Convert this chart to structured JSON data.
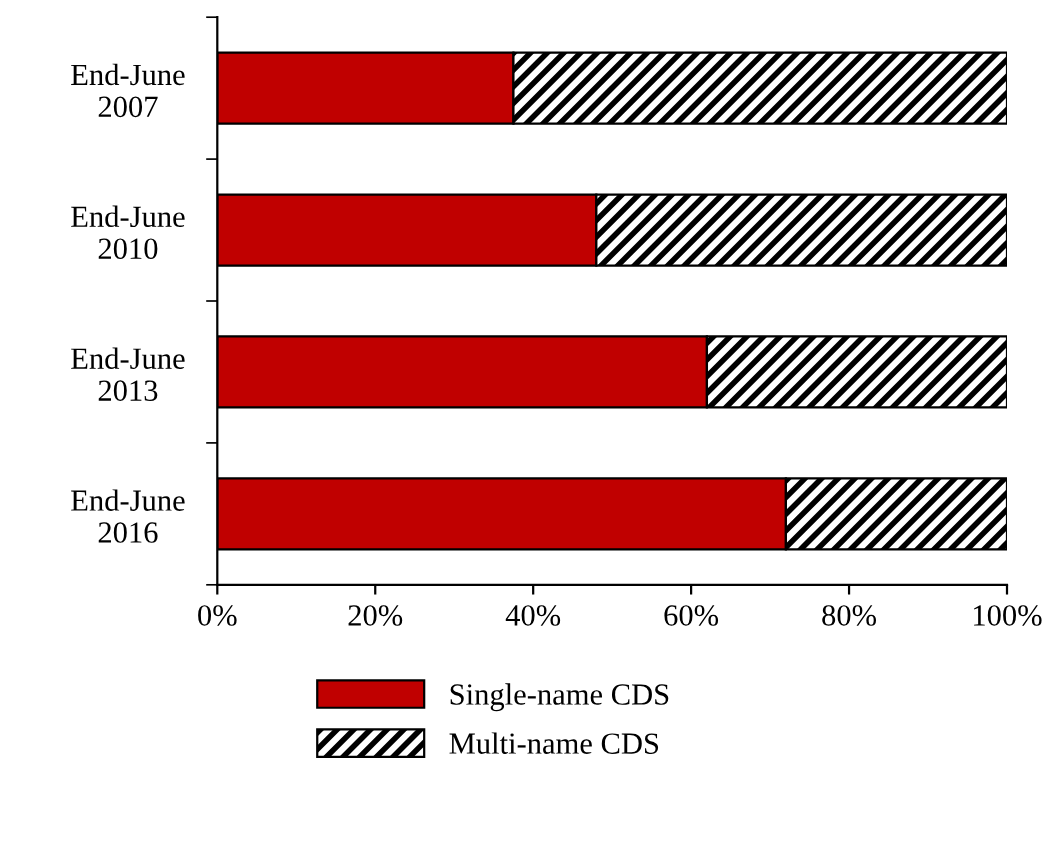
{
  "chart_data": {
    "type": "bar",
    "orientation": "horizontal",
    "stacked": true,
    "categories": [
      "End-June\n2007",
      "End-June\n2010",
      "End-June\n2013",
      "End-June\n2016"
    ],
    "series": [
      {
        "name": "Single-name CDS",
        "color": "#c00000",
        "values": [
          37.5,
          48,
          62,
          72
        ]
      },
      {
        "name": "Multi-name CDS",
        "color": "#000000",
        "values": [
          62.5,
          52,
          38,
          28
        ]
      }
    ],
    "xlim": [
      0,
      100
    ],
    "xticks": [
      {
        "value": 0,
        "label": "0%"
      },
      {
        "value": 20,
        "label": "20%"
      },
      {
        "value": 40,
        "label": "40%"
      },
      {
        "value": 60,
        "label": "60%"
      },
      {
        "value": 80,
        "label": "80%"
      },
      {
        "value": 100,
        "label": "100%"
      }
    ],
    "grid": false,
    "legend": "bottom"
  }
}
